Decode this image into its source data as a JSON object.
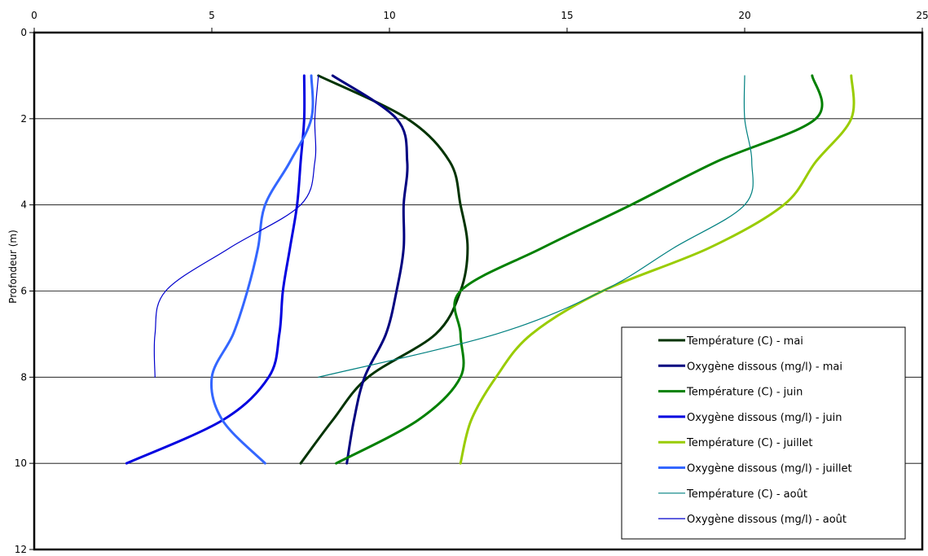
{
  "chart_data": {
    "type": "line",
    "orientation": "depth-profile",
    "title": "",
    "xlabel": "",
    "ylabel": "Profondeur (m)",
    "xlim": [
      0,
      25
    ],
    "ylim": [
      0,
      12
    ],
    "y_inverted": true,
    "x_axis_position": "top",
    "x_ticks": [
      0,
      5,
      10,
      15,
      20,
      25
    ],
    "y_ticks": [
      0,
      2,
      4,
      6,
      8,
      10,
      12
    ],
    "grid": {
      "horizontal": true,
      "vertical": false
    },
    "legend_position": "bottom-right",
    "series": [
      {
        "name": "Température (C) - mai",
        "color": "#003300",
        "stroke": "thick",
        "points": [
          [
            8.0,
            1
          ],
          [
            10.5,
            2
          ],
          [
            11.7,
            3
          ],
          [
            12.0,
            4
          ],
          [
            12.2,
            5
          ],
          [
            12.0,
            6
          ],
          [
            11.3,
            7
          ],
          [
            9.4,
            8
          ],
          [
            8.4,
            9
          ],
          [
            7.5,
            10
          ]
        ]
      },
      {
        "name": "Oxygène dissous (mg/l) - mai",
        "color": "#000080",
        "stroke": "thick",
        "points": [
          [
            8.4,
            1
          ],
          [
            10.2,
            2
          ],
          [
            10.5,
            3
          ],
          [
            10.4,
            4
          ],
          [
            10.4,
            5
          ],
          [
            10.2,
            6
          ],
          [
            9.9,
            7
          ],
          [
            9.3,
            8
          ],
          [
            9.0,
            9
          ],
          [
            8.8,
            10
          ]
        ]
      },
      {
        "name": "Température (C) - juin",
        "color": "#008000",
        "stroke": "thick",
        "points": [
          [
            21.9,
            1
          ],
          [
            22.0,
            2
          ],
          [
            19.2,
            3
          ],
          [
            16.8,
            4
          ],
          [
            14.3,
            5
          ],
          [
            12.0,
            6
          ],
          [
            12.0,
            7
          ],
          [
            12.0,
            8
          ],
          [
            10.8,
            9
          ],
          [
            8.5,
            10
          ]
        ]
      },
      {
        "name": "Oxygène dissous (mg/l) - juin",
        "color": "#0000E0",
        "stroke": "thick",
        "points": [
          [
            7.6,
            1
          ],
          [
            7.6,
            2
          ],
          [
            7.5,
            3
          ],
          [
            7.4,
            4
          ],
          [
            7.2,
            5
          ],
          [
            7.0,
            6
          ],
          [
            6.9,
            7
          ],
          [
            6.6,
            8
          ],
          [
            5.3,
            9
          ],
          [
            2.6,
            10
          ]
        ]
      },
      {
        "name": "Température (C) - juillet",
        "color": "#99CC00",
        "stroke": "thick",
        "points": [
          [
            23.0,
            1
          ],
          [
            23.0,
            2
          ],
          [
            22.0,
            3
          ],
          [
            21.1,
            4
          ],
          [
            19.0,
            5
          ],
          [
            16.0,
            6
          ],
          [
            14.0,
            7
          ],
          [
            13.0,
            8
          ],
          [
            12.3,
            9
          ],
          [
            12.0,
            10
          ]
        ]
      },
      {
        "name": "Oxygène dissous (mg/l) - juillet",
        "color": "#3366FF",
        "stroke": "thick",
        "points": [
          [
            7.8,
            1
          ],
          [
            7.8,
            2
          ],
          [
            7.2,
            3
          ],
          [
            6.5,
            4
          ],
          [
            6.3,
            5
          ],
          [
            6.0,
            6
          ],
          [
            5.6,
            7
          ],
          [
            5.0,
            8
          ],
          [
            5.3,
            9
          ],
          [
            6.5,
            10
          ]
        ]
      },
      {
        "name": "Température (C) - août",
        "color": "#008080",
        "stroke": "thin",
        "points": [
          [
            20.0,
            1
          ],
          [
            20.0,
            2
          ],
          [
            20.2,
            3
          ],
          [
            20.0,
            4
          ],
          [
            18.0,
            5
          ],
          [
            16.0,
            6
          ],
          [
            13.0,
            7
          ],
          [
            8.0,
            8
          ]
        ]
      },
      {
        "name": "Oxygène dissous (mg/l) - août",
        "color": "#0000CC",
        "stroke": "thin",
        "points": [
          [
            8.0,
            1
          ],
          [
            7.9,
            2
          ],
          [
            7.9,
            3
          ],
          [
            7.5,
            4
          ],
          [
            5.5,
            5
          ],
          [
            3.7,
            6
          ],
          [
            3.4,
            7
          ],
          [
            3.4,
            8
          ]
        ]
      }
    ]
  }
}
